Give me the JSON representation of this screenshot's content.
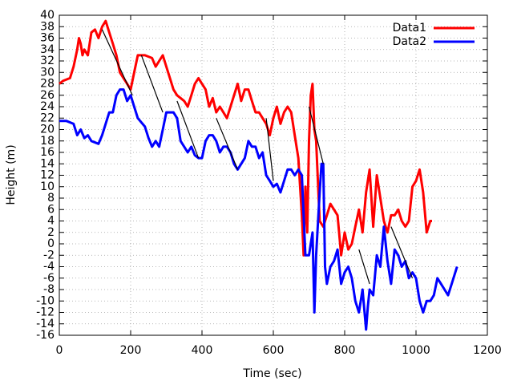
{
  "chart_data": {
    "type": "line",
    "xlabel": "Time (sec)",
    "ylabel": "Height (m)",
    "xlim": [
      0,
      1200
    ],
    "xticks": [
      0,
      200,
      400,
      600,
      800,
      1000,
      1200
    ],
    "ylim": [
      -16,
      40
    ],
    "yticks": [
      -16,
      -14,
      -12,
      -10,
      -8,
      -6,
      -4,
      -2,
      0,
      2,
      4,
      6,
      8,
      10,
      12,
      14,
      16,
      18,
      20,
      22,
      24,
      26,
      28,
      30,
      32,
      34,
      36,
      38,
      40
    ],
    "grid": true,
    "legend": "top-right",
    "series": [
      {
        "name": "Data1",
        "color": "#ff0000",
        "x": [
          0,
          10,
          30,
          40,
          50,
          55,
          60,
          65,
          70,
          80,
          90,
          100,
          110,
          120,
          130,
          140,
          150,
          160,
          170,
          180,
          190,
          200,
          210,
          220,
          240,
          260,
          270,
          280,
          290,
          300,
          310,
          320,
          330,
          340,
          350,
          360,
          370,
          380,
          390,
          400,
          410,
          420,
          430,
          440,
          450,
          460,
          470,
          490,
          500,
          510,
          520,
          530,
          540,
          550,
          560,
          570,
          580,
          590,
          600,
          610,
          620,
          630,
          640,
          650,
          660,
          670,
          680,
          685,
          690,
          695,
          700,
          705,
          710,
          715,
          720,
          730,
          740,
          750,
          760,
          770,
          780,
          790,
          800,
          810,
          820,
          830,
          840,
          850,
          860,
          870,
          880,
          890,
          900,
          910,
          920,
          930,
          940,
          950,
          960,
          970,
          980,
          990,
          1000,
          1010,
          1020,
          1030,
          1040,
          1045
        ],
        "values": [
          28,
          28.5,
          29,
          31,
          34,
          36,
          35,
          33,
          34,
          33,
          37,
          37.5,
          36,
          38,
          39,
          37,
          35,
          33,
          30,
          29,
          28,
          27,
          30,
          33,
          33,
          32.5,
          31,
          32,
          33,
          31,
          29,
          27,
          26,
          25.5,
          25,
          24,
          26,
          28,
          29,
          28,
          27,
          24,
          25.5,
          23,
          24,
          23,
          22,
          26,
          28,
          25,
          27,
          27,
          25,
          23,
          23,
          22,
          21,
          19,
          22,
          24,
          21,
          23,
          24,
          23,
          19,
          15,
          5,
          -2,
          10,
          2,
          18,
          26,
          28,
          20,
          18,
          4,
          3,
          5,
          7,
          6,
          5,
          -2,
          2,
          -1,
          0,
          3,
          6,
          2,
          9,
          13,
          3,
          12,
          8,
          4,
          2,
          5,
          5,
          6,
          4,
          3,
          4,
          10,
          11,
          13,
          9,
          2,
          4,
          4
        ]
      },
      {
        "name": "Data2",
        "color": "#0000ff",
        "x": [
          0,
          20,
          40,
          50,
          60,
          70,
          80,
          90,
          110,
          120,
          130,
          140,
          150,
          160,
          170,
          180,
          190,
          200,
          210,
          220,
          240,
          250,
          260,
          270,
          280,
          290,
          300,
          320,
          330,
          340,
          350,
          360,
          370,
          380,
          390,
          400,
          410,
          420,
          430,
          440,
          450,
          460,
          470,
          480,
          490,
          500,
          510,
          520,
          530,
          540,
          550,
          560,
          570,
          580,
          590,
          600,
          610,
          620,
          630,
          640,
          650,
          660,
          670,
          680,
          690,
          700,
          705,
          710,
          715,
          720,
          730,
          735,
          740,
          745,
          750,
          760,
          770,
          780,
          790,
          800,
          810,
          820,
          830,
          840,
          850,
          860,
          865,
          870,
          880,
          890,
          900,
          910,
          920,
          930,
          940,
          950,
          960,
          970,
          980,
          990,
          1000,
          1010,
          1020,
          1030,
          1040,
          1050,
          1060,
          1070,
          1080,
          1090,
          1100,
          1110,
          1115
        ],
        "values": [
          21.5,
          21.5,
          21,
          19,
          20,
          18.5,
          19,
          18,
          17.5,
          19,
          21,
          23,
          23,
          26,
          27,
          27,
          25,
          26,
          24,
          22,
          20.5,
          18.5,
          17,
          18,
          17,
          20,
          23,
          23,
          22,
          18,
          17,
          16,
          17,
          15.5,
          15,
          15,
          18,
          19,
          19,
          18,
          16,
          17,
          17,
          16,
          14,
          13,
          14,
          15,
          18,
          17,
          17,
          15,
          16,
          12,
          11,
          10,
          10.5,
          9,
          11,
          13,
          13,
          12,
          13,
          12,
          -2,
          -2,
          0,
          2,
          -12,
          -2,
          9,
          14,
          14,
          -4,
          -7,
          -4,
          -3,
          -1,
          -7,
          -5,
          -4,
          -6,
          -10,
          -12,
          -8,
          -15,
          -11,
          -8,
          -9,
          -2,
          -4,
          3,
          -3,
          -7,
          -1,
          -2,
          -4,
          -3,
          -6,
          -5,
          -6,
          -10,
          -12,
          -10,
          -10,
          -9,
          -6,
          -7,
          -8,
          -9,
          -7,
          -5,
          -4
        ]
      },
      {
        "color": "#000000",
        "x": [
          120,
          205,
          null,
          230,
          290,
          null,
          330,
          390,
          null,
          440,
          500,
          null,
          580,
          600,
          null,
          700,
          740,
          null,
          840,
          870,
          null,
          930,
          990
        ],
        "values": [
          37.5,
          26,
          null,
          33,
          23,
          null,
          25,
          15,
          null,
          22,
          13,
          null,
          22,
          11,
          null,
          24,
          14,
          null,
          -1,
          -7,
          null,
          3,
          -6
        ]
      }
    ]
  }
}
